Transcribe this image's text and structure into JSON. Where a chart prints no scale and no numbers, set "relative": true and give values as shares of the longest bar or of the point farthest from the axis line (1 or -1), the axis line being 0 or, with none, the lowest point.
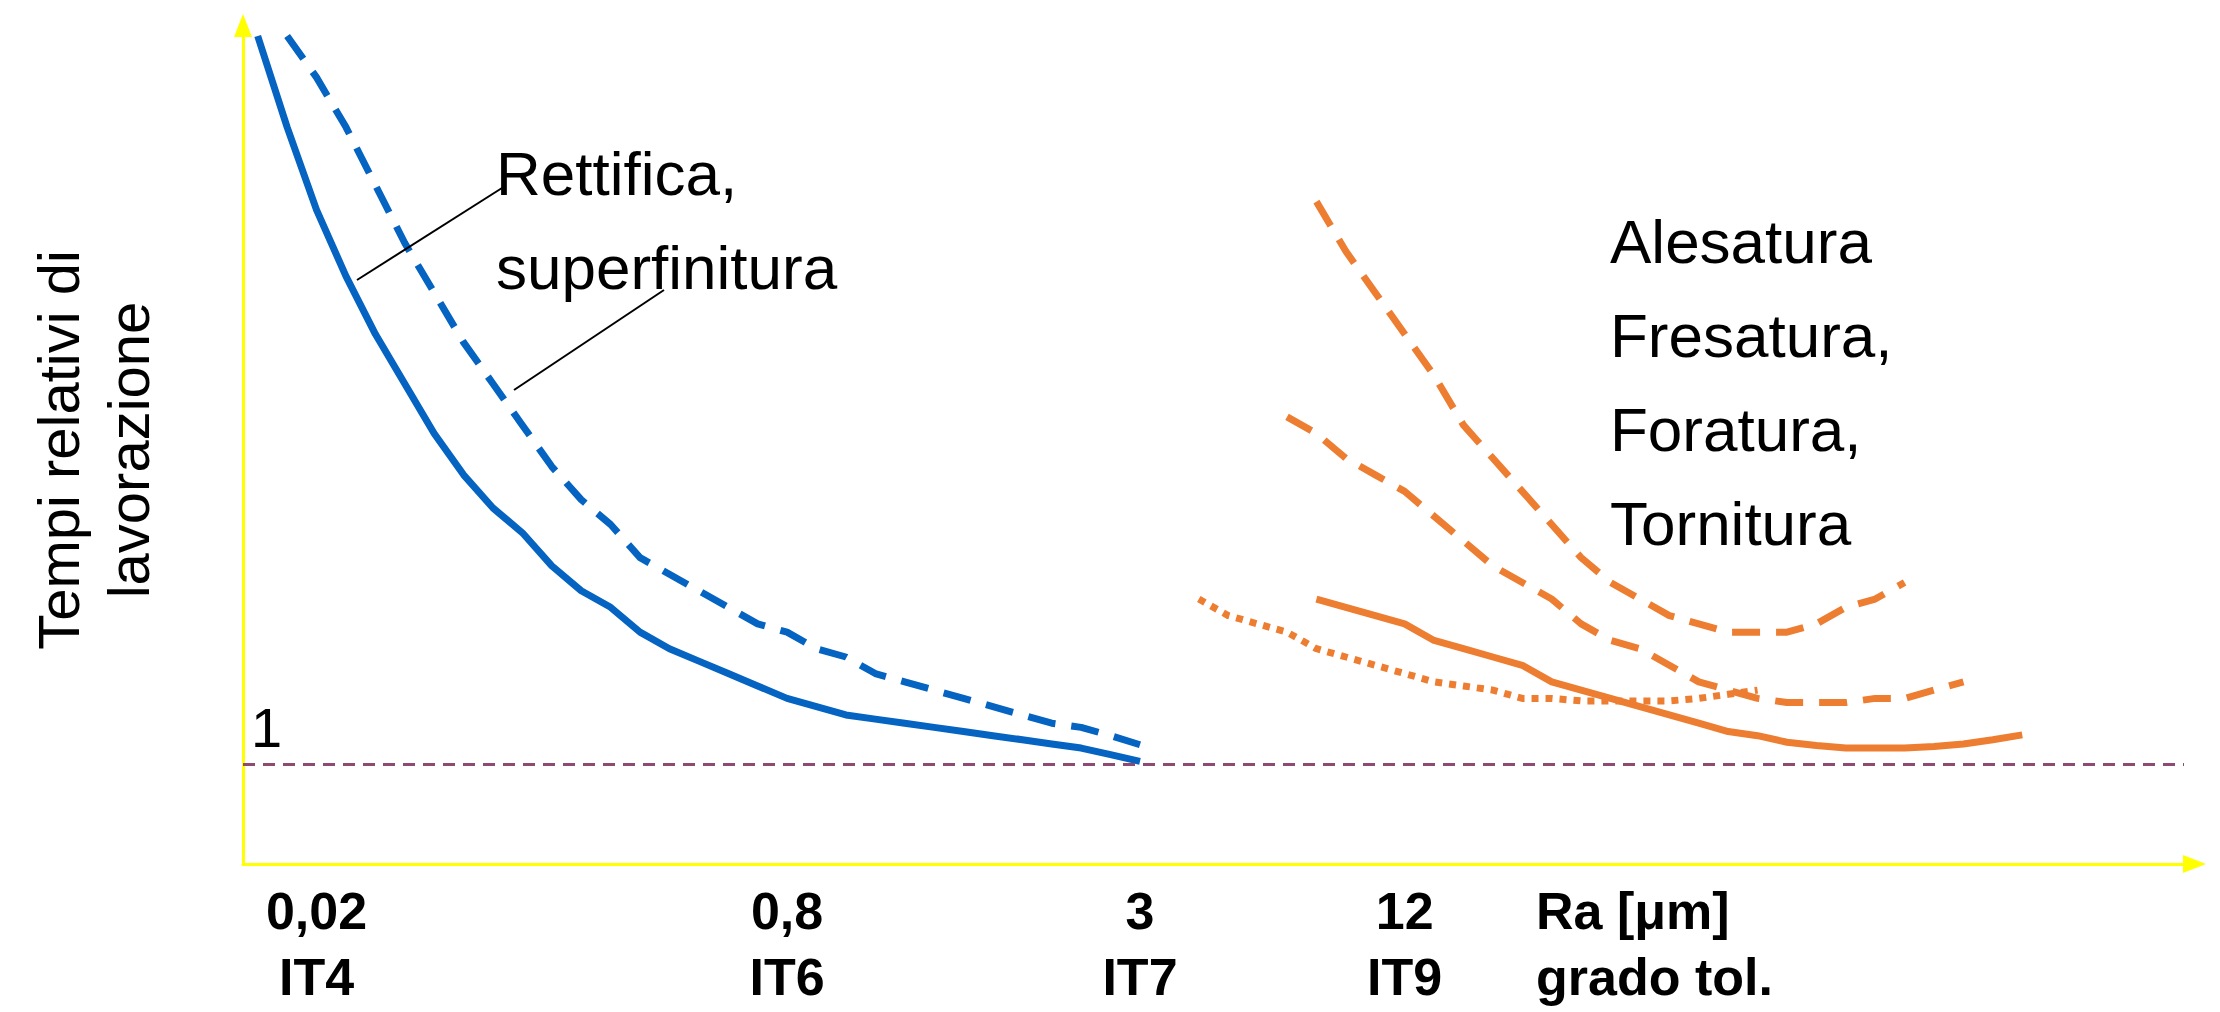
{
  "chart_data": {
    "type": "line",
    "relative": true,
    "ylabel": "Tempi relativi di\nlavorazione",
    "xlabel": "Ra [μm]\ngrado tol.",
    "categories": [
      null,
      null,
      "0,02\nIT4",
      null,
      null,
      null,
      null,
      null,
      null,
      null,
      null,
      null,
      null,
      null,
      null,
      null,
      null,
      null,
      "0,8\nIT6",
      null,
      null,
      null,
      null,
      null,
      null,
      null,
      null,
      null,
      null,
      null,
      "3\nIT7",
      null,
      null,
      null,
      null,
      null,
      null,
      null,
      null,
      "12\nIT9",
      null,
      null,
      null,
      null,
      null,
      null,
      null,
      null,
      null,
      null,
      null,
      null,
      null,
      null,
      null,
      null,
      null,
      null,
      null,
      null,
      null,
      null,
      null,
      null,
      null,
      null
    ],
    "series": [
      {
        "color": "#0563c1",
        "line_style": "solid",
        "values": [
          1.0,
          0.89,
          0.79,
          0.71,
          0.64,
          0.58,
          0.52,
          0.47,
          0.43,
          0.4,
          0.36,
          0.33,
          0.31,
          0.28,
          0.26,
          0.245,
          0.23,
          0.215,
          0.2,
          0.19,
          0.18,
          0.175,
          0.17,
          0.165,
          0.16,
          0.155,
          0.15,
          0.145,
          0.14,
          0.132,
          0.124,
          null,
          null,
          null,
          null,
          null,
          null,
          null,
          null,
          null,
          null,
          null,
          null,
          null,
          null,
          null,
          null,
          null,
          null,
          null,
          null,
          null,
          null,
          null,
          null,
          null,
          null,
          null,
          null,
          null,
          null,
          null,
          null,
          null,
          null,
          null
        ]
      },
      {
        "color": "#0563c1",
        "line_style": "dashed",
        "values": [
          null,
          1.0,
          0.95,
          0.89,
          0.82,
          0.75,
          0.69,
          0.63,
          0.58,
          0.53,
          0.48,
          0.44,
          0.41,
          0.37,
          0.35,
          0.33,
          0.31,
          0.29,
          0.28,
          0.26,
          0.25,
          0.23,
          0.22,
          0.21,
          0.2,
          0.19,
          0.18,
          0.17,
          0.165,
          0.155,
          0.144,
          null,
          null,
          null,
          null,
          null,
          null,
          null,
          null,
          null,
          null,
          null,
          null,
          null,
          null,
          null,
          null,
          null,
          null,
          null,
          null,
          null,
          null,
          null,
          null,
          null,
          null,
          null,
          null,
          null,
          null,
          null,
          null,
          null,
          null,
          null
        ]
      },
      {
        "color": "#ed7d31",
        "line_style": "dashed",
        "values": [
          null,
          null,
          null,
          null,
          null,
          null,
          null,
          null,
          null,
          null,
          null,
          null,
          null,
          null,
          null,
          null,
          null,
          null,
          null,
          null,
          null,
          null,
          null,
          null,
          null,
          null,
          null,
          null,
          null,
          null,
          null,
          null,
          null,
          null,
          null,
          null,
          0.8,
          0.74,
          0.69,
          0.64,
          0.59,
          0.53,
          0.49,
          0.45,
          0.41,
          0.37,
          0.34,
          0.32,
          0.3,
          0.29,
          0.28,
          0.28,
          0.28,
          0.29,
          0.31,
          0.32,
          0.34,
          null,
          null,
          null,
          null,
          null,
          null,
          null,
          null,
          null
        ]
      },
      {
        "color": "#ed7d31",
        "line_style": "dashed",
        "values": [
          null,
          null,
          null,
          null,
          null,
          null,
          null,
          null,
          null,
          null,
          null,
          null,
          null,
          null,
          null,
          null,
          null,
          null,
          null,
          null,
          null,
          null,
          null,
          null,
          null,
          null,
          null,
          null,
          null,
          null,
          null,
          null,
          null,
          null,
          null,
          0.54,
          0.52,
          0.49,
          0.47,
          0.45,
          0.42,
          0.39,
          0.36,
          0.34,
          0.32,
          0.29,
          0.27,
          0.26,
          0.24,
          0.22,
          0.21,
          0.2,
          0.195,
          0.195,
          0.195,
          0.2,
          0.2,
          0.21,
          0.22,
          null,
          null,
          null,
          null,
          null,
          null,
          null
        ]
      },
      {
        "color": "#ed7d31",
        "line_style": "solid",
        "values": [
          null,
          null,
          null,
          null,
          null,
          null,
          null,
          null,
          null,
          null,
          null,
          null,
          null,
          null,
          null,
          null,
          null,
          null,
          null,
          null,
          null,
          null,
          null,
          null,
          null,
          null,
          null,
          null,
          null,
          null,
          null,
          null,
          null,
          null,
          null,
          null,
          0.32,
          0.31,
          0.3,
          0.29,
          0.27,
          0.26,
          0.25,
          0.24,
          0.22,
          0.21,
          0.2,
          0.19,
          0.18,
          0.17,
          0.16,
          0.155,
          0.147,
          0.143,
          0.14,
          0.14,
          0.14,
          0.142,
          0.145,
          0.15,
          0.156,
          null,
          null,
          null,
          null,
          null
        ]
      },
      {
        "color": "#ed7d31",
        "line_style": "dotted",
        "values": [
          null,
          null,
          null,
          null,
          null,
          null,
          null,
          null,
          null,
          null,
          null,
          null,
          null,
          null,
          null,
          null,
          null,
          null,
          null,
          null,
          null,
          null,
          null,
          null,
          null,
          null,
          null,
          null,
          null,
          null,
          null,
          null,
          0.32,
          0.3,
          0.29,
          0.28,
          0.26,
          0.25,
          0.24,
          0.23,
          0.22,
          0.215,
          0.21,
          0.2,
          0.2,
          0.197,
          0.197,
          0.197,
          0.197,
          0.2,
          0.205,
          0.21,
          null,
          null,
          null,
          null,
          null,
          null,
          null,
          null,
          null,
          null,
          null,
          null,
          null,
          null
        ]
      }
    ],
    "ref_lines": [
      {
        "axis": "y",
        "value": 0.124,
        "color": "#8e4a70",
        "line_style": "dashed"
      }
    ],
    "annotations": [
      "Rettifica,\nsuperfinitura",
      "Alesatura\nFresatura,\nForatura,\nTornitura",
      {
        "text": "1",
        "y": 0.124
      }
    ],
    "grid": false,
    "marker": "none"
  }
}
